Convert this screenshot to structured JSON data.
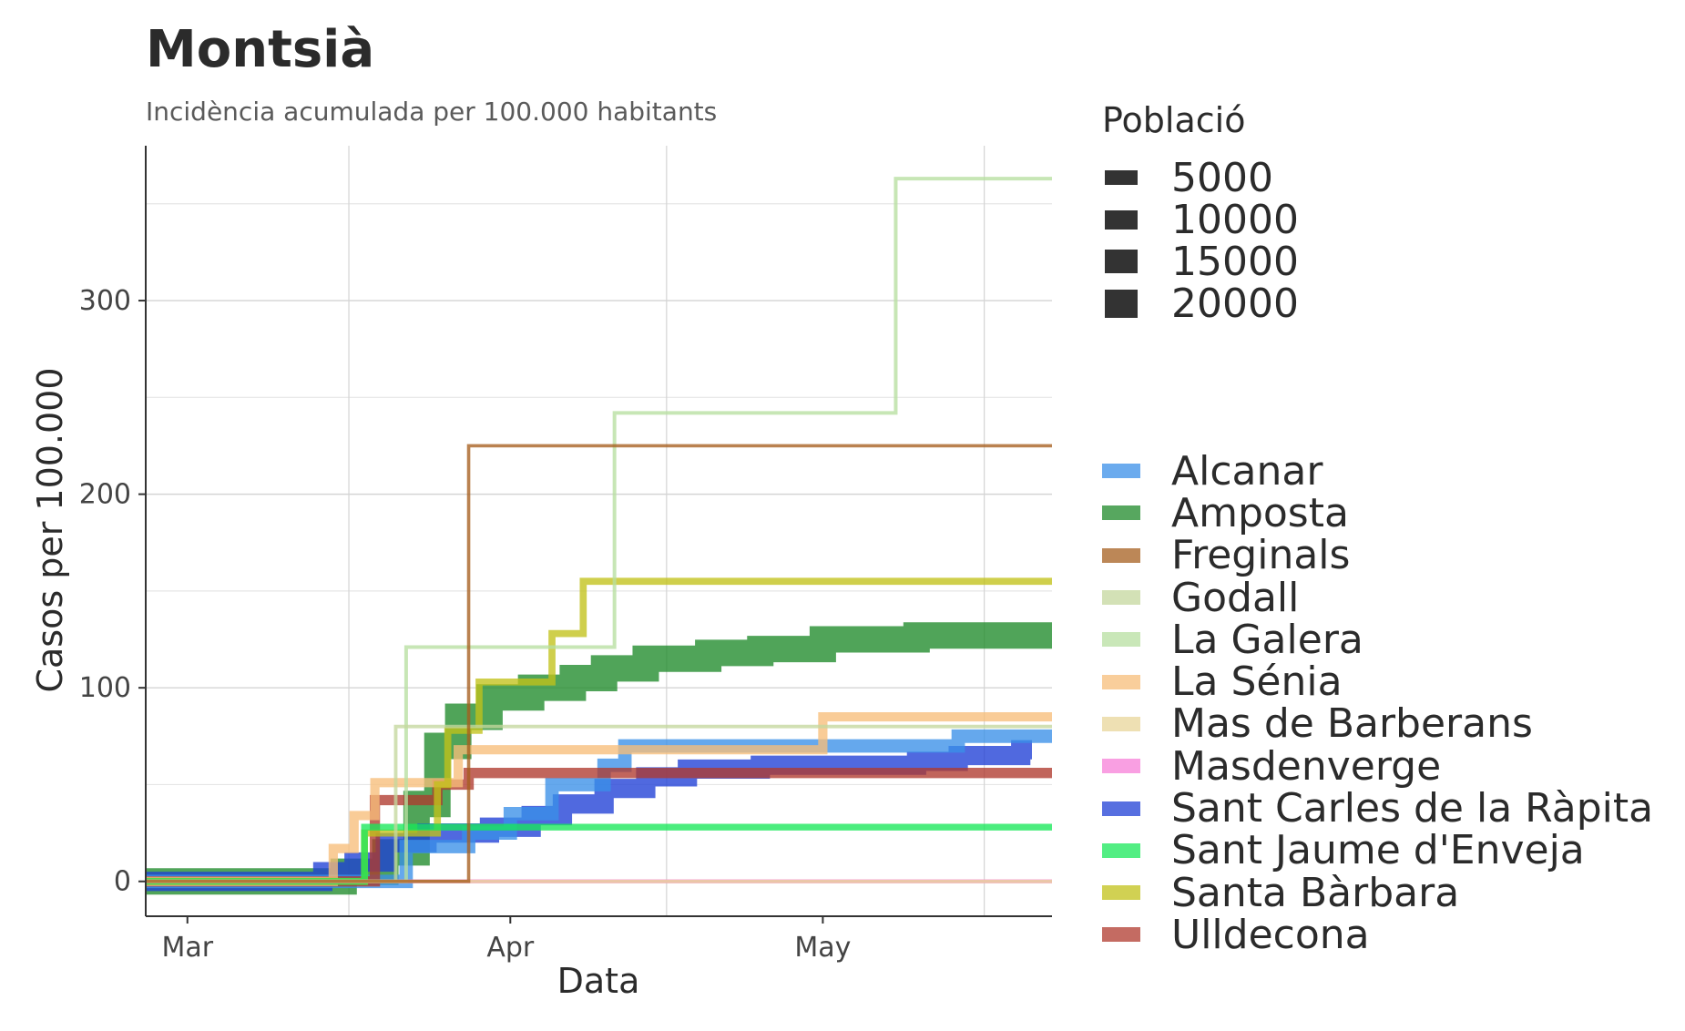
{
  "title": "Montsià",
  "subtitle": "Incidència acumulada per 100.000 habitants",
  "size_legend": {
    "title": "Població",
    "items": [
      "5000",
      "10000",
      "15000",
      "20000"
    ]
  },
  "chart_data": {
    "type": "line",
    "xlabel": "Data",
    "ylabel": "Casos per 100.000",
    "x_ticks": [
      {
        "label": "Mar",
        "date": "2020-03-01"
      },
      {
        "label": "Apr",
        "date": "2020-04-01"
      },
      {
        "label": "May",
        "date": "2020-05-01"
      }
    ],
    "y_ticks": [
      0,
      100,
      200,
      300
    ],
    "xlim": [
      "2020-02-26",
      "2020-05-23"
    ],
    "ylim": [
      -18,
      380
    ],
    "grid": true,
    "legend_position": "right",
    "series": [
      {
        "name": "Alcanar",
        "color": "#3a8fe8",
        "population": 9500,
        "points": [
          [
            "2020-02-26",
            0
          ],
          [
            "2020-03-20",
            0
          ],
          [
            "2020-03-22",
            18
          ],
          [
            "2020-03-28",
            25
          ],
          [
            "2020-04-01",
            35
          ],
          [
            "2020-04-05",
            50
          ],
          [
            "2020-04-10",
            60
          ],
          [
            "2020-04-12",
            70
          ],
          [
            "2020-05-01",
            70
          ],
          [
            "2020-05-05",
            70
          ],
          [
            "2020-05-14",
            75
          ],
          [
            "2020-05-23",
            75
          ]
        ]
      },
      {
        "name": "Amposta",
        "color": "#1f8a2a",
        "population": 21000,
        "points": [
          [
            "2020-02-26",
            0
          ],
          [
            "2020-03-13",
            0
          ],
          [
            "2020-03-16",
            5
          ],
          [
            "2020-03-20",
            15
          ],
          [
            "2020-03-23",
            40
          ],
          [
            "2020-03-25",
            70
          ],
          [
            "2020-03-27",
            85
          ],
          [
            "2020-03-30",
            95
          ],
          [
            "2020-04-03",
            100
          ],
          [
            "2020-04-07",
            105
          ],
          [
            "2020-04-10",
            110
          ],
          [
            "2020-04-14",
            115
          ],
          [
            "2020-04-20",
            118
          ],
          [
            "2020-04-25",
            120
          ],
          [
            "2020-05-01",
            125
          ],
          [
            "2020-05-10",
            127
          ],
          [
            "2020-05-23",
            127
          ]
        ]
      },
      {
        "name": "Freginals",
        "color": "#a65f1f",
        "population": 500,
        "points": [
          [
            "2020-02-26",
            0
          ],
          [
            "2020-03-27",
            0
          ],
          [
            "2020-03-28",
            225
          ],
          [
            "2020-05-23",
            225
          ]
        ]
      },
      {
        "name": "Godall",
        "color": "#c4d79d",
        "population": 700,
        "points": [
          [
            "2020-02-26",
            0
          ],
          [
            "2020-03-20",
            0
          ],
          [
            "2020-03-21",
            80
          ],
          [
            "2020-05-23",
            80
          ]
        ]
      },
      {
        "name": "La Galera",
        "color": "#b7dfa0",
        "population": 800,
        "points": [
          [
            "2020-02-26",
            0
          ],
          [
            "2020-03-21",
            0
          ],
          [
            "2020-03-22",
            121
          ],
          [
            "2020-04-10",
            121
          ],
          [
            "2020-04-11",
            242
          ],
          [
            "2020-05-07",
            242
          ],
          [
            "2020-05-08",
            363
          ],
          [
            "2020-05-23",
            363
          ]
        ]
      },
      {
        "name": "La Sénia",
        "color": "#f7be7a",
        "population": 5800,
        "points": [
          [
            "2020-02-26",
            0
          ],
          [
            "2020-03-14",
            0
          ],
          [
            "2020-03-15",
            17
          ],
          [
            "2020-03-17",
            34
          ],
          [
            "2020-03-19",
            51
          ],
          [
            "2020-03-25",
            51
          ],
          [
            "2020-03-27",
            68
          ],
          [
            "2020-04-20",
            68
          ],
          [
            "2020-04-30",
            68
          ],
          [
            "2020-05-01",
            85
          ],
          [
            "2020-05-23",
            85
          ]
        ]
      },
      {
        "name": "Mas de Barberans",
        "color": "#e8d59a",
        "population": 600,
        "points": [
          [
            "2020-02-26",
            0
          ],
          [
            "2020-05-23",
            0
          ]
        ]
      },
      {
        "name": "Masdenverge",
        "color": "#f77fd8",
        "population": 1100,
        "points": [
          [
            "2020-02-26",
            0
          ],
          [
            "2020-05-23",
            0
          ]
        ]
      },
      {
        "name": "Sant Carles de la Ràpita",
        "color": "#1f3fd6",
        "population": 14700,
        "points": [
          [
            "2020-02-26",
            0
          ],
          [
            "2020-03-11",
            0
          ],
          [
            "2020-03-14",
            5
          ],
          [
            "2020-03-17",
            10
          ],
          [
            "2020-03-20",
            20
          ],
          [
            "2020-03-24",
            25
          ],
          [
            "2020-03-30",
            28
          ],
          [
            "2020-04-03",
            34
          ],
          [
            "2020-04-06",
            40
          ],
          [
            "2020-04-10",
            48
          ],
          [
            "2020-04-14",
            54
          ],
          [
            "2020-04-18",
            58
          ],
          [
            "2020-04-25",
            60
          ],
          [
            "2020-05-10",
            62
          ],
          [
            "2020-05-14",
            65
          ],
          [
            "2020-05-20",
            68
          ]
        ]
      },
      {
        "name": "Sant Jaume d'Enveja",
        "color": "#18e85a",
        "population": 3500,
        "points": [
          [
            "2020-02-26",
            0
          ],
          [
            "2020-03-17",
            0
          ],
          [
            "2020-03-18",
            28
          ],
          [
            "2020-05-23",
            28
          ]
        ]
      },
      {
        "name": "Santa Bàrbara",
        "color": "#c2c21a",
        "population": 3800,
        "points": [
          [
            "2020-02-26",
            0
          ],
          [
            "2020-03-17",
            0
          ],
          [
            "2020-03-18",
            25
          ],
          [
            "2020-03-24",
            25
          ],
          [
            "2020-03-25",
            50
          ],
          [
            "2020-03-26",
            78
          ],
          [
            "2020-03-29",
            103
          ],
          [
            "2020-04-03",
            103
          ],
          [
            "2020-04-05",
            128
          ],
          [
            "2020-04-07",
            128
          ],
          [
            "2020-04-08",
            155
          ],
          [
            "2020-05-23",
            155
          ]
        ]
      },
      {
        "name": "Ulldecona",
        "color": "#b03a2e",
        "population": 6700,
        "points": [
          [
            "2020-02-26",
            0
          ],
          [
            "2020-03-17",
            0
          ],
          [
            "2020-03-19",
            42
          ],
          [
            "2020-03-25",
            50
          ],
          [
            "2020-03-28",
            56
          ],
          [
            "2020-05-23",
            56
          ]
        ]
      }
    ]
  }
}
